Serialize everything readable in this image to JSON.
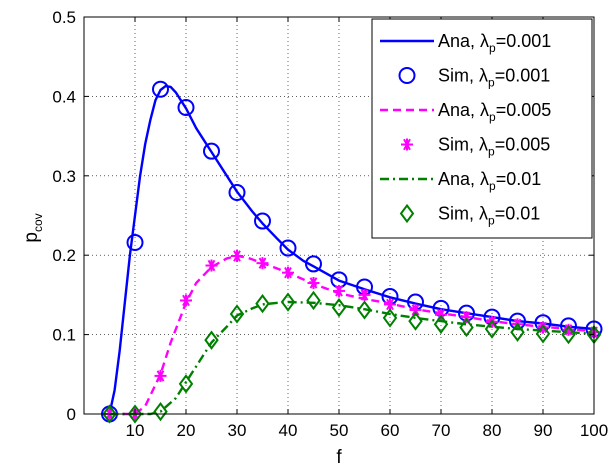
{
  "chart_data": {
    "type": "line",
    "xlabel": "f",
    "ylabel": "p",
    "ylabel_sub": "cov",
    "xlim": [
      0,
      100
    ],
    "ylim": [
      0,
      0.5
    ],
    "xticks": [
      10,
      20,
      30,
      40,
      50,
      60,
      70,
      80,
      90,
      100
    ],
    "xtick_labels": [
      "10",
      "20",
      "30",
      "40",
      "50",
      "60",
      "70",
      "80",
      "90",
      "100"
    ],
    "yticks": [
      0,
      0.1,
      0.2,
      0.3,
      0.4,
      0.5
    ],
    "ytick_labels": [
      "0",
      "0.1",
      "0.2",
      "0.3",
      "0.4",
      "0.5"
    ],
    "grid": true,
    "legend_position": "top-right",
    "legend_label_prefix": "λ",
    "legend_label_sub": "p",
    "series": [
      {
        "name": "Ana, λp=0.001",
        "label_head": "Ana,",
        "label_tail": "=0.001",
        "kind": "line",
        "color": "#0000ff",
        "dash": "solid",
        "marker": "none",
        "x": [
          5,
          6,
          7,
          8,
          9,
          10,
          11,
          12,
          13,
          14,
          15,
          16,
          17,
          18,
          20,
          22,
          25,
          28,
          30,
          33,
          35,
          38,
          40,
          43,
          45,
          50,
          55,
          60,
          65,
          70,
          75,
          80,
          85,
          90,
          95,
          100
        ],
        "y": [
          0,
          0.03,
          0.08,
          0.14,
          0.2,
          0.25,
          0.3,
          0.34,
          0.37,
          0.395,
          0.408,
          0.413,
          0.412,
          0.405,
          0.385,
          0.36,
          0.33,
          0.3,
          0.28,
          0.255,
          0.24,
          0.22,
          0.207,
          0.193,
          0.186,
          0.168,
          0.157,
          0.147,
          0.139,
          0.132,
          0.127,
          0.122,
          0.117,
          0.114,
          0.11,
          0.107
        ]
      },
      {
        "name": "Sim, λp=0.001",
        "label_head": "Sim,",
        "label_tail": "=0.001",
        "kind": "marker",
        "color": "#0000ff",
        "marker": "circle",
        "x": [
          5,
          10,
          15,
          20,
          25,
          30,
          35,
          40,
          45,
          50,
          55,
          60,
          65,
          70,
          75,
          80,
          85,
          90,
          95,
          100
        ],
        "y": [
          0,
          0.216,
          0.409,
          0.386,
          0.331,
          0.279,
          0.243,
          0.209,
          0.189,
          0.169,
          0.16,
          0.148,
          0.141,
          0.133,
          0.127,
          0.122,
          0.117,
          0.115,
          0.111,
          0.107
        ]
      },
      {
        "name": "Ana, λp=0.005",
        "label_head": "Ana,",
        "label_tail": "=0.005",
        "kind": "line",
        "color": "#ff00ff",
        "dash": "dashed",
        "marker": "none",
        "x": [
          5,
          10,
          12,
          15,
          17,
          20,
          22,
          25,
          28,
          30,
          32,
          35,
          38,
          40,
          45,
          50,
          55,
          60,
          65,
          70,
          75,
          80,
          85,
          90,
          95,
          100
        ],
        "y": [
          0,
          0,
          0.01,
          0.05,
          0.09,
          0.14,
          0.165,
          0.185,
          0.196,
          0.199,
          0.197,
          0.19,
          0.183,
          0.178,
          0.164,
          0.152,
          0.145,
          0.139,
          0.132,
          0.127,
          0.122,
          0.117,
          0.113,
          0.11,
          0.107,
          0.104
        ]
      },
      {
        "name": "Sim, λp=0.005",
        "label_head": "Sim,",
        "label_tail": "=0.005",
        "kind": "marker",
        "color": "#ff00ff",
        "marker": "asterisk",
        "x": [
          5,
          10,
          15,
          20,
          25,
          30,
          35,
          40,
          45,
          50,
          55,
          60,
          65,
          70,
          75,
          80,
          85,
          90,
          95,
          100
        ],
        "y": [
          0,
          0,
          0.048,
          0.143,
          0.187,
          0.199,
          0.19,
          0.178,
          0.165,
          0.155,
          0.15,
          0.138,
          0.131,
          0.125,
          0.122,
          0.116,
          0.113,
          0.109,
          0.106,
          0.103
        ]
      },
      {
        "name": "Ana, λp=0.01",
        "label_head": "Ana,",
        "label_tail": "=0.01",
        "kind": "line",
        "color": "#008000",
        "dash": "dashdot",
        "marker": "none",
        "x": [
          5,
          10,
          13,
          15,
          18,
          20,
          23,
          25,
          28,
          30,
          33,
          35,
          38,
          40,
          45,
          50,
          55,
          60,
          65,
          70,
          75,
          80,
          85,
          90,
          95,
          100
        ],
        "y": [
          0,
          0,
          0,
          0.003,
          0.02,
          0.04,
          0.07,
          0.09,
          0.11,
          0.124,
          0.133,
          0.138,
          0.14,
          0.141,
          0.14,
          0.137,
          0.132,
          0.126,
          0.121,
          0.117,
          0.113,
          0.11,
          0.107,
          0.105,
          0.103,
          0.101
        ]
      },
      {
        "name": "Sim, λp=0.01",
        "label_head": "Sim,",
        "label_tail": "=0.01",
        "kind": "marker",
        "color": "#008000",
        "marker": "diamond",
        "x": [
          5,
          10,
          15,
          20,
          25,
          30,
          35,
          40,
          45,
          50,
          55,
          60,
          65,
          70,
          75,
          80,
          85,
          90,
          95,
          100
        ],
        "y": [
          0,
          0,
          0.003,
          0.038,
          0.093,
          0.126,
          0.139,
          0.141,
          0.143,
          0.134,
          0.131,
          0.121,
          0.117,
          0.113,
          0.109,
          0.107,
          0.103,
          0.101,
          0.1,
          0.1
        ]
      }
    ]
  }
}
